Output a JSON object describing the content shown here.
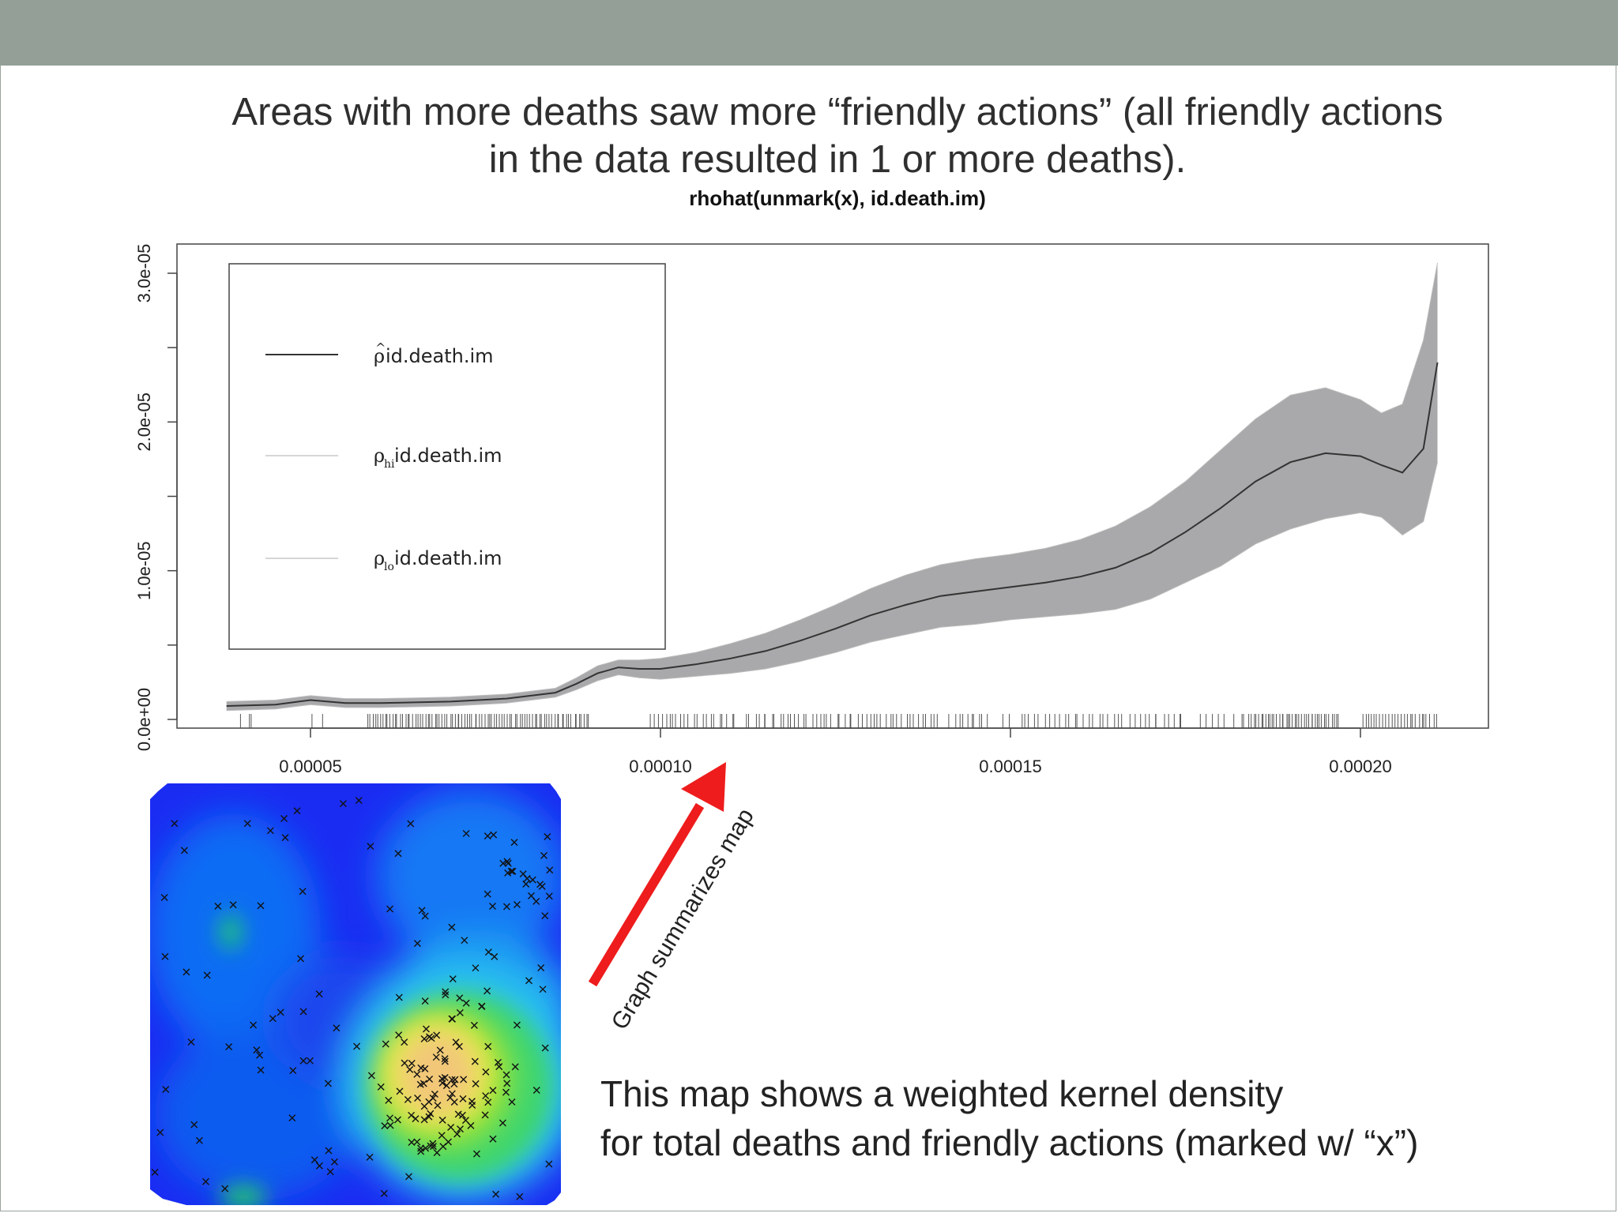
{
  "colors": {
    "top_bar": "#939f97",
    "band": "#a9a8aa",
    "line": "#333333",
    "arrow": "#ee1c1c"
  },
  "slide": {
    "title_line1": "Areas with more deaths saw more “friendly actions” (all friendly actions",
    "title_line2": "in the data resulted in 1 or more deaths).",
    "arrow_label": "Graph summarizes map",
    "caption_line1": "This map shows a weighted kernel density",
    "caption_line2": "for total deaths and friendly actions (marked w/ “x”)"
  },
  "chart_data": {
    "type": "line",
    "title": "rhohat(unmark(x), id.death.im)",
    "xlabel": "",
    "ylabel": "",
    "xlim": [
      1.9e-05,
      0.000217
    ],
    "ylim": [
      0,
      3e-05
    ],
    "x_ticks": [
      {
        "value": 5e-05,
        "label": "0.00005"
      },
      {
        "value": 0.0001,
        "label": "0.00010"
      },
      {
        "value": 0.00015,
        "label": "0.00015"
      },
      {
        "value": 0.0002,
        "label": "0.00020"
      }
    ],
    "y_ticks": [
      {
        "value": 0,
        "label": "0.0e+00"
      },
      {
        "value": 1e-05,
        "label": "1.0e-05"
      },
      {
        "value": 2e-05,
        "label": "2.0e-05"
      },
      {
        "value": 3e-05,
        "label": "3.0e-05"
      }
    ],
    "legend": {
      "placement": "top-left",
      "entries": [
        {
          "label": "id.death.im",
          "symbol": "rho-hat"
        },
        {
          "label": "id.death.im",
          "symbol": "rho-hi"
        },
        {
          "label": "id.death.im",
          "symbol": "rho-lo"
        }
      ]
    },
    "series": [
      {
        "name": "rho-hat",
        "x": [
          3.8e-05,
          4.5e-05,
          5e-05,
          5.5e-05,
          6e-05,
          7e-05,
          7.8e-05,
          8.5e-05,
          8.8e-05,
          9.1e-05,
          9.4e-05,
          9.7e-05,
          0.0001,
          0.000105,
          0.00011,
          0.000115,
          0.00012,
          0.000125,
          0.00013,
          0.000135,
          0.00014,
          0.000145,
          0.00015,
          0.000155,
          0.00016,
          0.000165,
          0.00017,
          0.000175,
          0.00018,
          0.000185,
          0.00019,
          0.000195,
          0.0002,
          0.000203,
          0.000206,
          0.000209,
          0.000211
        ],
        "y": [
          9e-07,
          1e-06,
          1.3e-06,
          1.1e-06,
          1.1e-06,
          1.2e-06,
          1.4e-06,
          1.8e-06,
          2.4e-06,
          3.1e-06,
          3.5e-06,
          3.4e-06,
          3.4e-06,
          3.7e-06,
          4.1e-06,
          4.6e-06,
          5.3e-06,
          6.1e-06,
          7e-06,
          7.7e-06,
          8.3e-06,
          8.6e-06,
          8.9e-06,
          9.2e-06,
          9.6e-06,
          1.02e-05,
          1.12e-05,
          1.26e-05,
          1.42e-05,
          1.6e-05,
          1.73e-05,
          1.79e-05,
          1.77e-05,
          1.71e-05,
          1.66e-05,
          1.82e-05,
          2.4e-05
        ]
      },
      {
        "name": "rho-hi",
        "x": [
          3.8e-05,
          4.5e-05,
          5e-05,
          5.5e-05,
          6e-05,
          7e-05,
          7.8e-05,
          8.5e-05,
          8.8e-05,
          9.1e-05,
          9.4e-05,
          9.7e-05,
          0.0001,
          0.000105,
          0.00011,
          0.000115,
          0.00012,
          0.000125,
          0.00013,
          0.000135,
          0.00014,
          0.000145,
          0.00015,
          0.000155,
          0.00016,
          0.000165,
          0.00017,
          0.000175,
          0.00018,
          0.000185,
          0.00019,
          0.000195,
          0.0002,
          0.000203,
          0.000206,
          0.000209,
          0.000211
        ],
        "y": [
          1.2e-06,
          1.3e-06,
          1.6e-06,
          1.4e-06,
          1.4e-06,
          1.5e-06,
          1.7e-06,
          2.1e-06,
          2.8e-06,
          3.6e-06,
          4e-06,
          4e-06,
          4.1e-06,
          4.5e-06,
          5.1e-06,
          5.8e-06,
          6.7e-06,
          7.7e-06,
          8.8e-06,
          9.7e-06,
          1.04e-05,
          1.08e-05,
          1.11e-05,
          1.15e-05,
          1.21e-05,
          1.3e-05,
          1.43e-05,
          1.6e-05,
          1.81e-05,
          2.02e-05,
          2.18e-05,
          2.23e-05,
          2.15e-05,
          2.06e-05,
          2.12e-05,
          2.55e-05,
          3.07e-05
        ]
      },
      {
        "name": "rho-lo",
        "x": [
          3.8e-05,
          4.5e-05,
          5e-05,
          5.5e-05,
          6e-05,
          7e-05,
          7.8e-05,
          8.5e-05,
          8.8e-05,
          9.1e-05,
          9.4e-05,
          9.7e-05,
          0.0001,
          0.000105,
          0.00011,
          0.000115,
          0.00012,
          0.000125,
          0.00013,
          0.000135,
          0.00014,
          0.000145,
          0.00015,
          0.000155,
          0.00016,
          0.000165,
          0.00017,
          0.000175,
          0.00018,
          0.000185,
          0.00019,
          0.000195,
          0.0002,
          0.000203,
          0.000206,
          0.000209,
          0.000211
        ],
        "y": [
          6e-07,
          7e-07,
          1e-06,
          8e-07,
          8e-07,
          9e-07,
          1.1e-06,
          1.5e-06,
          2e-06,
          2.6e-06,
          3e-06,
          2.8e-06,
          2.7e-06,
          2.9e-06,
          3.1e-06,
          3.4e-06,
          3.9e-06,
          4.5e-06,
          5.2e-06,
          5.7e-06,
          6.2e-06,
          6.4e-06,
          6.7e-06,
          6.9e-06,
          7.1e-06,
          7.4e-06,
          8.1e-06,
          9.2e-06,
          1.03e-05,
          1.18e-05,
          1.28e-05,
          1.35e-05,
          1.39e-05,
          1.36e-05,
          1.24e-05,
          1.33e-05,
          1.73e-05
        ]
      }
    ],
    "rug_clusters": [
      [
        4e-05,
        4.2e-05,
        3
      ],
      [
        5e-05,
        5.2e-05,
        2
      ],
      [
        5.8e-05,
        9e-05,
        90
      ],
      [
        9.8e-05,
        0.000111,
        22
      ],
      [
        0.000112,
        0.00014,
        48
      ],
      [
        0.000141,
        0.000147,
        10
      ],
      [
        0.0001485,
        0.00015,
        2
      ],
      [
        0.000151,
        0.000175,
        34
      ],
      [
        0.000177,
        0.000184,
        8
      ],
      [
        0.000184,
        0.000197,
        40
      ],
      [
        0.0002,
        0.000211,
        26
      ]
    ]
  }
}
